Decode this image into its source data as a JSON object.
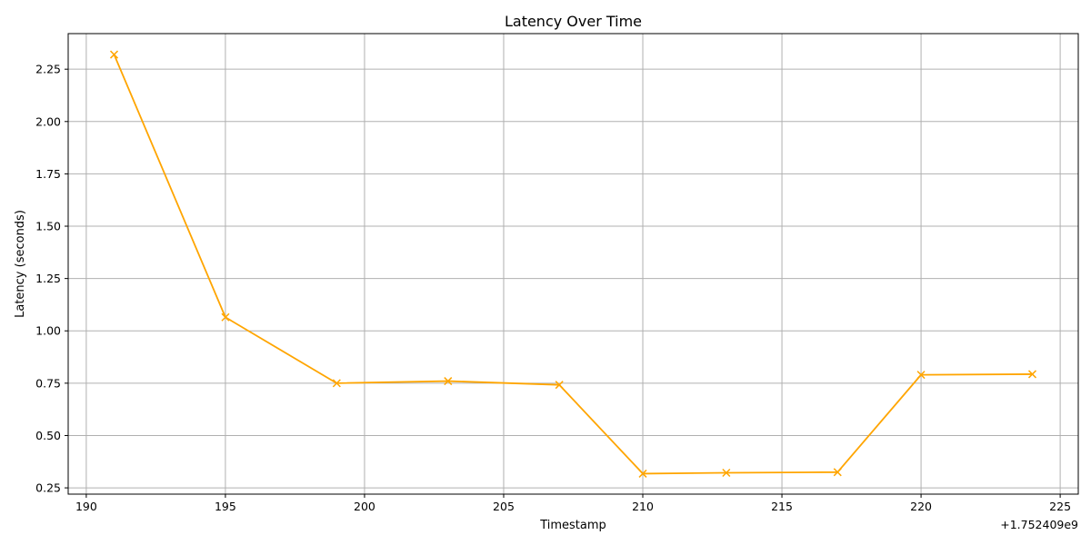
{
  "chart_data": {
    "type": "line",
    "title": "Latency Over Time",
    "xlabel": "Timestamp",
    "ylabel": "Latency (seconds)",
    "x_offset_label": "+1.752409e9",
    "line_color": "#ffa500",
    "marker": "x",
    "grid": true,
    "xlim": [
      189.35,
      225.65
    ],
    "ylim": [
      0.22,
      2.42
    ],
    "xticks": [
      190,
      195,
      200,
      205,
      210,
      215,
      220,
      225
    ],
    "yticks": [
      0.25,
      0.5,
      0.75,
      1.0,
      1.25,
      1.5,
      1.75,
      2.0,
      2.25
    ],
    "x_tick_labels": [
      "190",
      "195",
      "200",
      "205",
      "210",
      "215",
      "220",
      "225"
    ],
    "y_tick_labels": [
      "0.25",
      "0.50",
      "0.75",
      "1.00",
      "1.25",
      "1.50",
      "1.75",
      "2.00",
      "2.25"
    ],
    "series": [
      {
        "x": [
          191,
          195,
          199,
          203,
          207,
          210,
          213,
          217,
          220,
          224
        ],
        "values": [
          2.32,
          1.065,
          0.75,
          0.76,
          0.742,
          0.318,
          0.322,
          0.325,
          0.79,
          0.793
        ]
      }
    ]
  }
}
